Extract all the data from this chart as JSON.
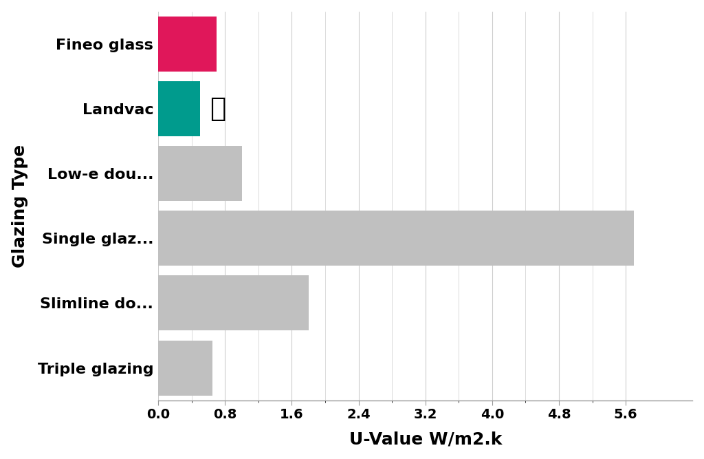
{
  "categories": [
    "Fineo glass",
    "Landvac",
    "Low-e dou...",
    "Single glaz...",
    "Slimline do...",
    "Triple glazing"
  ],
  "values": [
    0.7,
    0.5,
    1.0,
    5.7,
    1.8,
    0.65
  ],
  "colors": [
    "#E0175A",
    "#009B8D",
    "#C0C0C0",
    "#C0C0C0",
    "#C0C0C0",
    "#C0C0C0"
  ],
  "xlabel": "U-Value W/m2.k",
  "ylabel": "Glazing Type",
  "xlim": [
    0,
    6.4
  ],
  "xticks": [
    0.0,
    0.8,
    1.6,
    2.4,
    3.2,
    4.0,
    4.8,
    5.6
  ],
  "trophy_category": "Landvac",
  "background_color": "#FFFFFF",
  "grid_color": "#CCCCCC",
  "bar_height": 0.85,
  "ylabel_fontsize": 18,
  "xlabel_fontsize": 18,
  "tick_fontsize": 14,
  "label_fontsize": 16
}
